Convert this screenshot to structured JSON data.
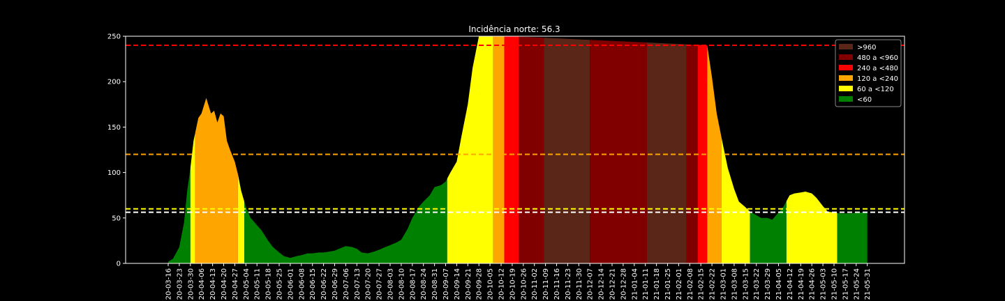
{
  "chart_data": {
    "type": "area",
    "title": "Incidência norte: 56.3",
    "xlabel": "",
    "ylabel": "",
    "ylim": [
      0,
      250
    ],
    "yticks": [
      "0",
      "50",
      "100",
      "150",
      "200",
      "250"
    ],
    "grid": false,
    "legend_placement": "top-right",
    "background": "#000000",
    "x_tick_labels": [
      "2020-03-16",
      "2020-03-23",
      "2020-03-30",
      "2020-04-06",
      "2020-04-13",
      "2020-04-20",
      "2020-04-27",
      "2020-05-04",
      "2020-05-11",
      "2020-05-18",
      "2020-05-25",
      "2020-06-01",
      "2020-06-08",
      "2020-06-15",
      "2020-06-22",
      "2020-06-29",
      "2020-07-06",
      "2020-07-13",
      "2020-07-20",
      "2020-07-27",
      "2020-08-03",
      "2020-08-10",
      "2020-08-17",
      "2020-08-24",
      "2020-08-31",
      "2020-09-07",
      "2020-09-14",
      "2020-09-21",
      "2020-09-28",
      "2020-10-05",
      "2020-10-12",
      "2020-10-19",
      "2020-10-26",
      "2020-11-02",
      "2020-11-09",
      "2020-11-16",
      "2020-11-23",
      "2020-11-30",
      "2020-12-07",
      "2020-12-14",
      "2020-12-21",
      "2020-12-28",
      "2021-01-04",
      "2021-01-11",
      "2021-01-18",
      "2021-01-25",
      "2021-02-01",
      "2021-02-08",
      "2021-02-15",
      "2021-02-22",
      "2021-03-01",
      "2021-03-08",
      "2021-03-15",
      "2021-03-22",
      "2021-03-29",
      "2021-04-05",
      "2021-04-12",
      "2021-04-19",
      "2021-04-26",
      "2021-05-03",
      "2021-05-10",
      "2021-05-17",
      "2021-05-24",
      "2021-05-31"
    ],
    "x_tick_texts": [
      "20-03-16",
      "20-03-23",
      "20-03-30",
      "20-04-06",
      "20-04-13",
      "20-04-20",
      "20-04-27",
      "20-05-04",
      "20-05-11",
      "20-05-18",
      "20-05-25",
      "20-06-01",
      "20-06-08",
      "20-06-15",
      "20-06-22",
      "20-06-29",
      "20-07-06",
      "20-07-13",
      "20-07-20",
      "20-07-27",
      "20-08-03",
      "20-08-10",
      "20-08-17",
      "20-08-24",
      "20-08-31",
      "20-09-07",
      "20-09-14",
      "20-09-21",
      "20-09-28",
      "20-10-05",
      "20-10-12",
      "20-10-19",
      "20-10-26",
      "20-11-02",
      "20-11-09",
      "20-11-16",
      "20-11-23",
      "20-11-30",
      "20-12-07",
      "20-12-14",
      "20-12-21",
      "20-12-28",
      "21-01-04",
      "21-01-11",
      "21-01-18",
      "21-01-25",
      "21-02-01",
      "21-02-08",
      "21-02-15",
      "21-02-22",
      "21-03-01",
      "21-03-08",
      "21-03-15",
      "21-03-22",
      "21-03-29",
      "21-04-05",
      "21-04-12",
      "21-04-19",
      "21-04-26",
      "21-05-03",
      "21-05-10",
      "21-05-17",
      "21-05-24",
      "21-05-31"
    ],
    "series": [
      {
        "x": [
          "2020-03-16",
          "2020-03-19",
          "2020-03-23",
          "2020-03-26",
          "2020-03-28",
          "2020-03-30",
          "2020-04-01",
          "2020-04-04",
          "2020-04-06",
          "2020-04-09",
          "2020-04-12",
          "2020-04-14",
          "2020-04-16",
          "2020-04-18",
          "2020-04-20",
          "2020-04-22",
          "2020-04-24",
          "2020-04-27",
          "2020-04-29",
          "2020-05-01",
          "2020-05-04",
          "2020-05-07",
          "2020-05-11",
          "2020-05-14",
          "2020-05-18",
          "2020-05-21",
          "2020-05-25",
          "2020-05-28",
          "2020-06-01",
          "2020-06-05",
          "2020-06-08",
          "2020-06-12",
          "2020-06-15",
          "2020-06-19",
          "2020-06-22",
          "2020-06-26",
          "2020-06-29",
          "2020-07-03",
          "2020-07-06",
          "2020-07-10",
          "2020-07-13",
          "2020-07-16",
          "2020-07-20",
          "2020-07-24",
          "2020-07-27",
          "2020-07-31",
          "2020-08-03",
          "2020-08-07",
          "2020-08-10",
          "2020-08-14",
          "2020-08-17",
          "2020-08-21",
          "2020-08-24",
          "2020-08-28",
          "2020-08-31",
          "2020-09-04",
          "2020-09-07",
          "2020-09-10",
          "2020-09-14",
          "2020-09-17",
          "2020-09-21",
          "2020-09-24",
          "2020-09-28",
          "2020-10-01",
          "2020-10-05",
          "2020-10-08",
          "2020-10-12",
          "2020-10-14",
          "2020-10-16",
          "2020-10-18",
          "2021-02-19",
          "2021-02-22",
          "2021-02-25",
          "2021-03-01",
          "2021-03-04",
          "2021-03-08",
          "2021-03-11",
          "2021-03-15",
          "2021-03-18",
          "2021-03-22",
          "2021-03-25",
          "2021-03-29",
          "2021-04-01",
          "2021-04-05",
          "2021-04-08",
          "2021-04-12",
          "2021-04-15",
          "2021-04-19",
          "2021-04-22",
          "2021-04-26",
          "2021-04-29",
          "2021-05-03",
          "2021-05-06",
          "2021-05-10",
          "2021-05-14",
          "2021-05-17",
          "2021-05-21",
          "2021-05-24",
          "2021-05-28",
          "2021-05-31"
        ],
        "values": [
          2,
          5,
          18,
          45,
          80,
          105,
          135,
          160,
          165,
          182,
          165,
          168,
          155,
          165,
          162,
          135,
          125,
          112,
          98,
          80,
          62,
          50,
          42,
          36,
          25,
          18,
          12,
          8,
          6,
          8,
          9,
          11,
          11,
          12,
          12,
          13,
          14,
          17,
          19,
          18,
          16,
          12,
          11,
          13,
          15,
          18,
          20,
          23,
          26,
          38,
          50,
          62,
          68,
          75,
          84,
          86,
          90,
          100,
          112,
          140,
          175,
          215,
          250,
          250,
          250,
          250,
          250,
          250,
          250,
          250,
          240,
          205,
          165,
          130,
          105,
          82,
          68,
          62,
          57,
          53,
          50,
          50,
          48,
          56,
          62,
          75,
          77,
          78,
          79,
          77,
          72,
          63,
          57,
          56,
          55,
          55,
          55,
          56,
          56,
          56
        ]
      }
    ],
    "series_x": [
      "2020-03-16",
      "2020-03-19",
      "2020-03-23",
      "2020-03-26",
      "2020-03-28",
      "2020-03-30",
      "2020-04-01",
      "2020-04-04",
      "2020-04-06",
      "2020-04-09",
      "2020-04-12",
      "2020-04-14",
      "2020-04-16",
      "2020-04-18",
      "2020-04-20",
      "2020-04-22",
      "2020-04-24",
      "2020-04-27",
      "2020-04-29",
      "2020-05-01",
      "2020-05-04",
      "2020-05-07",
      "2020-05-11",
      "2020-05-14",
      "2020-05-18",
      "2020-05-21",
      "2020-05-25",
      "2020-05-28",
      "2020-06-01",
      "2020-06-05",
      "2020-06-08",
      "2020-06-12",
      "2020-06-15",
      "2020-06-19",
      "2020-06-22",
      "2020-06-26",
      "2020-06-29",
      "2020-07-03",
      "2020-07-06",
      "2020-07-10",
      "2020-07-13",
      "2020-07-16",
      "2020-07-20",
      "2020-07-24",
      "2020-07-27",
      "2020-07-31",
      "2020-08-03",
      "2020-08-07",
      "2020-08-10",
      "2020-08-14",
      "2020-08-17",
      "2020-08-21",
      "2020-08-24",
      "2020-08-28",
      "2020-08-31",
      "2020-09-04",
      "2020-09-07",
      "2020-09-10",
      "2020-09-14",
      "2020-09-17",
      "2020-09-21",
      "2020-09-24",
      "2020-09-28",
      "2020-10-01",
      "2020-10-05",
      "2020-10-08",
      "2020-10-12",
      "2020-10-14",
      "2020-10-16",
      "2020-10-18"
    ],
    "bands": [
      {
        "start": "2020-03-16",
        "end": "2020-03-30",
        "level": "<60"
      },
      {
        "start": "2020-03-30",
        "end": "2020-04-02",
        "level": "60 a <120"
      },
      {
        "start": "2020-04-02",
        "end": "2020-04-29",
        "level": "120 a <240"
      },
      {
        "start": "2020-04-29",
        "end": "2020-05-03",
        "level": "60 a <120"
      },
      {
        "start": "2020-05-03",
        "end": "2020-09-08",
        "level": "<60"
      },
      {
        "start": "2020-09-08",
        "end": "2020-10-07",
        "level": "60 a <120"
      },
      {
        "start": "2020-10-07",
        "end": "2020-10-14",
        "level": "120 a <240"
      },
      {
        "start": "2020-10-14",
        "end": "2020-10-23",
        "level": "240 a <480"
      },
      {
        "start": "2020-10-23",
        "end": "2020-11-08",
        "level": "480 a <960"
      },
      {
        "start": "2020-11-08",
        "end": "2020-12-07",
        "level": ">960"
      },
      {
        "start": "2020-12-07",
        "end": "2021-01-12",
        "level": "480 a <960"
      },
      {
        "start": "2021-01-12",
        "end": "2021-02-06",
        "level": ">960"
      },
      {
        "start": "2021-02-06",
        "end": "2021-02-13",
        "level": "480 a <960"
      },
      {
        "start": "2021-02-13",
        "end": "2021-02-19",
        "level": "240 a <480"
      },
      {
        "start": "2021-02-19",
        "end": "2021-02-28",
        "level": "120 a <240"
      },
      {
        "start": "2021-02-28",
        "end": "2021-03-18",
        "level": "60 a <120"
      },
      {
        "start": "2021-03-18",
        "end": "2021-04-10",
        "level": "<60"
      },
      {
        "start": "2021-04-10",
        "end": "2021-05-12",
        "level": "60 a <120"
      },
      {
        "start": "2021-05-12",
        "end": "2021-06-01",
        "level": "<60"
      }
    ],
    "reference_lines": [
      {
        "value": 240,
        "color": "#ff0000"
      },
      {
        "value": 120,
        "color": "#ffa500"
      },
      {
        "value": 60,
        "color": "#ffff00"
      },
      {
        "value": 56.3,
        "color": "#ffffff"
      }
    ],
    "legend": [
      {
        "label": ">960",
        "color": "#5a2618"
      },
      {
        "label": "480 a <960",
        "color": "#800000"
      },
      {
        "label": "240 a <480",
        "color": "#ff0000"
      },
      {
        "label": "120 a <240",
        "color": "#ffa500"
      },
      {
        "label": "60 a <120",
        "color": "#ffff00"
      },
      {
        "label": "<60",
        "color": "#008000"
      }
    ]
  }
}
